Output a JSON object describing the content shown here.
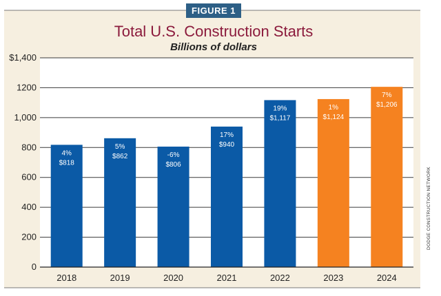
{
  "figure_label": "FIGURE 1",
  "source_note": "DODGE CONSTRUCTION NETWORK",
  "colors": {
    "panel": "#f6efe0",
    "actual": "#0b5aa6",
    "forecast": "#f58220",
    "title": "#8b1a3c",
    "rule": "#7a7a7a",
    "figure_tag": "#2d5f86"
  },
  "chart_data": {
    "type": "bar",
    "title": "Total U.S. Construction Starts",
    "subtitle": "Billions of dollars",
    "xlabel": "",
    "ylabel": "",
    "ylim": [
      0,
      1400
    ],
    "yticks": [
      0,
      200,
      400,
      600,
      800,
      1000,
      1200,
      1400
    ],
    "ytick_labels": [
      "0",
      "200",
      "400",
      "600",
      "800",
      "1,000",
      "1200",
      "$1,400"
    ],
    "grid": true,
    "legend": "none",
    "categories": [
      "2018",
      "2019",
      "2020",
      "2021",
      "2022",
      "2023",
      "2024"
    ],
    "values": [
      818,
      862,
      806,
      940,
      1117,
      1124,
      1206
    ],
    "pct_labels": [
      "4%",
      "5%",
      "-6%",
      "17%",
      "19%",
      "1%",
      "7%"
    ],
    "value_labels": [
      "$818",
      "$862",
      "$806",
      "$940",
      "$1,117",
      "$1,124",
      "$1,206"
    ],
    "bar_colors": [
      "#0b5aa6",
      "#0b5aa6",
      "#0b5aa6",
      "#0b5aa6",
      "#0b5aa6",
      "#f58220",
      "#f58220"
    ]
  }
}
